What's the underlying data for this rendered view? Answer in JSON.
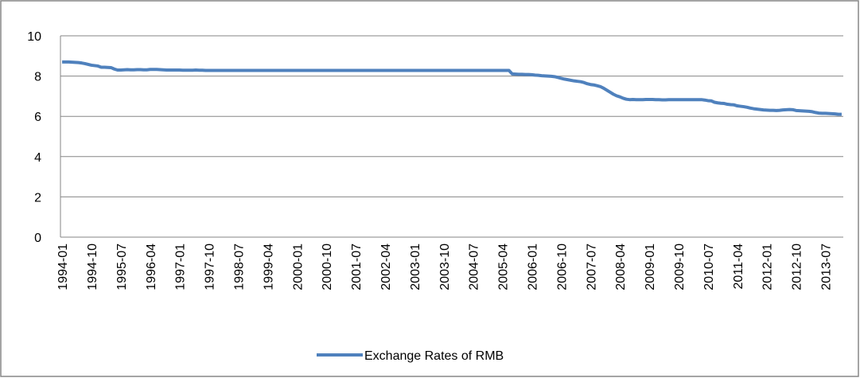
{
  "chart_data": {
    "type": "line",
    "categories": [
      "1994-01",
      null,
      null,
      null,
      null,
      null,
      null,
      null,
      null,
      "1994-10",
      null,
      null,
      null,
      null,
      null,
      null,
      null,
      null,
      "1995-07",
      null,
      null,
      null,
      null,
      null,
      null,
      null,
      null,
      "1996-04",
      null,
      null,
      null,
      null,
      null,
      null,
      null,
      null,
      "1997-01",
      null,
      null,
      null,
      null,
      null,
      null,
      null,
      null,
      "1997-10",
      null,
      null,
      null,
      null,
      null,
      null,
      null,
      null,
      "1998-07",
      null,
      null,
      null,
      null,
      null,
      null,
      null,
      null,
      "1999-04",
      null,
      null,
      null,
      null,
      null,
      null,
      null,
      null,
      "2000-01",
      null,
      null,
      null,
      null,
      null,
      null,
      null,
      null,
      "2000-10",
      null,
      null,
      null,
      null,
      null,
      null,
      null,
      null,
      "2001-07",
      null,
      null,
      null,
      null,
      null,
      null,
      null,
      null,
      "2002-04",
      null,
      null,
      null,
      null,
      null,
      null,
      null,
      null,
      "2003-01",
      null,
      null,
      null,
      null,
      null,
      null,
      null,
      null,
      "2003-10",
      null,
      null,
      null,
      null,
      null,
      null,
      null,
      null,
      "2004-07",
      null,
      null,
      null,
      null,
      null,
      null,
      null,
      null,
      "2005-04",
      null,
      null,
      null,
      null,
      null,
      null,
      null,
      null,
      "2006-01",
      null,
      null,
      null,
      null,
      null,
      null,
      null,
      null,
      "2006-10",
      null,
      null,
      null,
      null,
      null,
      null,
      null,
      null,
      "2007-07",
      null,
      null,
      null,
      null,
      null,
      null,
      null,
      null,
      "2008-04",
      null,
      null,
      null,
      null,
      null,
      null,
      null,
      null,
      "2009-01",
      null,
      null,
      null,
      null,
      null,
      null,
      null,
      null,
      "2009-10",
      null,
      null,
      null,
      null,
      null,
      null,
      null,
      null,
      "2010-07",
      null,
      null,
      null,
      null,
      null,
      null,
      null,
      null,
      "2011-04",
      null,
      null,
      null,
      null,
      null,
      null,
      null,
      null,
      "2012-01",
      null,
      null,
      null,
      null,
      null,
      null,
      null,
      null,
      "2012-10",
      null,
      null,
      null,
      null,
      null,
      null,
      null,
      null,
      "2013-07",
      null,
      null,
      null,
      null,
      null
    ],
    "series": [
      {
        "name": "Exchange Rates of RMB",
        "color": "#4f81bd",
        "values": [
          8.7,
          8.7,
          8.7,
          8.69,
          8.68,
          8.67,
          8.65,
          8.62,
          8.58,
          8.54,
          8.52,
          8.5,
          8.44,
          8.44,
          8.43,
          8.42,
          8.35,
          8.3,
          8.3,
          8.31,
          8.32,
          8.31,
          8.31,
          8.32,
          8.32,
          8.31,
          8.31,
          8.33,
          8.33,
          8.33,
          8.32,
          8.31,
          8.3,
          8.3,
          8.3,
          8.3,
          8.3,
          8.29,
          8.29,
          8.29,
          8.29,
          8.3,
          8.29,
          8.29,
          8.28,
          8.28,
          8.28,
          8.28,
          8.28,
          8.28,
          8.28,
          8.28,
          8.28,
          8.28,
          8.28,
          8.28,
          8.28,
          8.28,
          8.28,
          8.28,
          8.28,
          8.28,
          8.28,
          8.28,
          8.28,
          8.28,
          8.28,
          8.28,
          8.28,
          8.28,
          8.28,
          8.28,
          8.28,
          8.28,
          8.28,
          8.28,
          8.28,
          8.28,
          8.28,
          8.28,
          8.28,
          8.28,
          8.28,
          8.28,
          8.28,
          8.28,
          8.28,
          8.28,
          8.28,
          8.28,
          8.28,
          8.28,
          8.28,
          8.28,
          8.28,
          8.28,
          8.28,
          8.28,
          8.28,
          8.28,
          8.28,
          8.28,
          8.28,
          8.28,
          8.28,
          8.28,
          8.28,
          8.28,
          8.28,
          8.28,
          8.28,
          8.28,
          8.28,
          8.28,
          8.28,
          8.28,
          8.28,
          8.28,
          8.28,
          8.28,
          8.28,
          8.28,
          8.28,
          8.28,
          8.28,
          8.28,
          8.28,
          8.28,
          8.28,
          8.28,
          8.28,
          8.28,
          8.28,
          8.28,
          8.28,
          8.28,
          8.28,
          8.28,
          8.11,
          8.1,
          8.09,
          8.09,
          8.08,
          8.08,
          8.07,
          8.05,
          8.04,
          8.02,
          8.01,
          8.0,
          7.99,
          7.97,
          7.93,
          7.89,
          7.85,
          7.82,
          7.79,
          7.76,
          7.74,
          7.72,
          7.68,
          7.62,
          7.58,
          7.56,
          7.52,
          7.48,
          7.4,
          7.3,
          7.2,
          7.1,
          7.02,
          6.97,
          6.9,
          6.85,
          6.83,
          6.84,
          6.83,
          6.83,
          6.83,
          6.84,
          6.84,
          6.84,
          6.83,
          6.83,
          6.82,
          6.82,
          6.83,
          6.83,
          6.83,
          6.83,
          6.83,
          6.83,
          6.83,
          6.83,
          6.83,
          6.83,
          6.83,
          6.81,
          6.78,
          6.77,
          6.7,
          6.67,
          6.65,
          6.64,
          6.6,
          6.58,
          6.57,
          6.52,
          6.5,
          6.48,
          6.45,
          6.41,
          6.38,
          6.36,
          6.34,
          6.32,
          6.31,
          6.3,
          6.3,
          6.29,
          6.3,
          6.32,
          6.33,
          6.34,
          6.33,
          6.29,
          6.28,
          6.27,
          6.26,
          6.25,
          6.23,
          6.19,
          6.16,
          6.15,
          6.15,
          6.14,
          6.13,
          6.12,
          6.1,
          6.1
        ]
      }
    ],
    "ylim": [
      0,
      10
    ],
    "yticks": [
      0,
      2,
      4,
      6,
      8,
      10
    ],
    "grid": true,
    "legend": "bottom"
  }
}
